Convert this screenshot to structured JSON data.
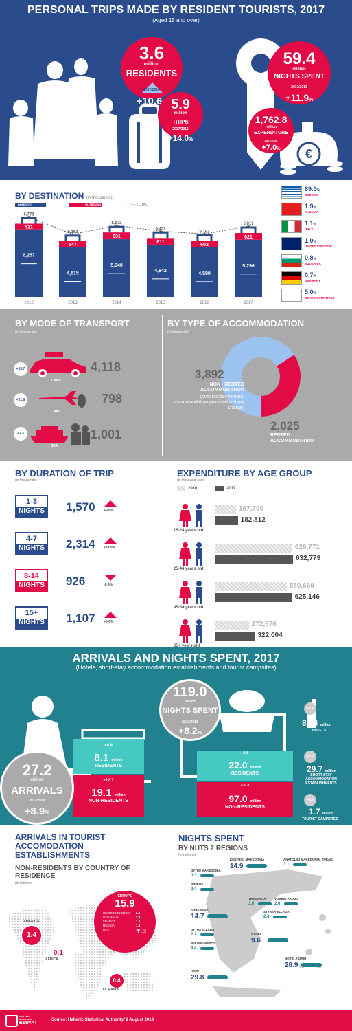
{
  "header": {
    "title": "PERSONAL TRIPS MADE BY RESIDENT TOURISTS, 2017",
    "subtitle": "(Aged 15 and over)"
  },
  "hero": {
    "residents_value": "3.6",
    "residents_unit": "million",
    "residents_label": "RESIDENTS",
    "residents_period": "2017/2016",
    "residents_change": "+10.6",
    "pct": "%",
    "trips_value": "5.9",
    "trips_unit": "million",
    "trips_label": "TRIPS",
    "trips_period": "2017/2016",
    "trips_change": "+14.0",
    "nights_value": "59.4",
    "nights_unit": "million",
    "nights_label": "NIGHTS SPENT",
    "nights_period": "2017/2016",
    "nights_change": "+11.9",
    "exp_value": "1,762.8",
    "exp_unit": "million",
    "exp_label": "EXPENDITURE",
    "exp_period": "2017/2016",
    "exp_change": "+7.0"
  },
  "destination": {
    "title": "BY DESTINATION",
    "unit": "(in thousands)",
    "legend": [
      "DOMESTIC",
      "OUTBOUND",
      "TOTAL"
    ]
  },
  "chart_data": [
    {
      "type": "bar",
      "title": "BY DESTINATION",
      "unit": "(in thousands)",
      "categories": [
        "2012",
        "2013",
        "2014",
        "2015",
        "2016",
        "2017"
      ],
      "series": [
        {
          "name": "DOMESTIC",
          "values": [
            6257,
            4615,
            5340,
            4842,
            4590,
            5296
          ]
        },
        {
          "name": "OUTBOUND",
          "values": [
            521,
            547,
            631,
            611,
            602,
            621
          ]
        },
        {
          "name": "TOTAL",
          "values": [
            6778,
            5163,
            5972,
            5453,
            5192,
            5917
          ]
        }
      ],
      "domestic_labels": [
        "6,257",
        "4,615",
        "5,340",
        "4,842",
        "4,590",
        "5,296"
      ],
      "outbound_labels": [
        "521",
        "547",
        "631",
        "611",
        "602",
        "621"
      ],
      "total_labels": [
        "6,778",
        "5,163",
        "5,972",
        "5,453",
        "5,192",
        "5,917"
      ]
    },
    {
      "type": "bar",
      "title": "BY COUNTRY",
      "categories": [
        "GREECE",
        "ALBANIA",
        "ITALY",
        "UNITED KINGDOM",
        "BULGARIA",
        "GERMANY",
        "OTHER COUNTRIES"
      ],
      "values": [
        89.5,
        1.9,
        1.1,
        1.0,
        0.8,
        0.7,
        5.0
      ]
    },
    {
      "type": "pie",
      "title": "BY TYPE OF ACCOMMODATION",
      "unit": "(in thousands)",
      "categories": [
        "NON - RENTED ACCOMMODATION",
        "RENTED ACCOMMODATION"
      ],
      "values": [
        3892,
        2025
      ]
    },
    {
      "type": "bar",
      "title": "EXPENDITURE BY AGE GROUP",
      "unit": "(in thousand euro)",
      "categories": [
        "15-24 years old",
        "25-44 years old",
        "45-64 years old",
        "65+ years old"
      ],
      "series": [
        {
          "name": "2016",
          "values": [
            167700,
            626771,
            580669,
            272576
          ]
        },
        {
          "name": "2017",
          "values": [
            182812,
            632779,
            625146,
            322004
          ]
        }
      ]
    }
  ],
  "countries": [
    {
      "pct": "89.5",
      "name": "GREECE"
    },
    {
      "pct": "1.9",
      "name": "ALBANIA"
    },
    {
      "pct": "1.1",
      "name": "ITALY"
    },
    {
      "pct": "1.0",
      "name": "UNITED KINGDOM"
    },
    {
      "pct": "0.8",
      "name": "BULGARIA"
    },
    {
      "pct": "0.7",
      "name": "GERMANY"
    },
    {
      "pct": "5.0",
      "name": "OTHER COUNTRIES"
    }
  ],
  "transport": {
    "title": "BY MODE OF TRANSPORT",
    "unit": "(in thousands)",
    "items": [
      {
        "label": "LAND",
        "value": "4,118",
        "change": "+15.7"
      },
      {
        "label": "AIR",
        "value": "798",
        "change": "+21.6"
      },
      {
        "label": "SEA",
        "value": "1,001",
        "change": "+2.3"
      }
    ]
  },
  "accommodation": {
    "title": "BY TYPE OF ACCOMMODATION",
    "unit": "(in thousands)",
    "nonrented_value": "3,892",
    "nonrented_label": "NON - RENTED ACCOMMODATION",
    "nonrented_note": "(own holiday homes, accommodation provided without charge)",
    "rented_value": "2,025",
    "rented_label": "RENTED ACCOMMODATION"
  },
  "duration": {
    "title": "BY DURATION OF TRIP",
    "unit": "(in thousands)",
    "items": [
      {
        "nights": "1-3",
        "label": "NIGHTS",
        "value": "1,570",
        "change": "+9.6",
        "dir": "up"
      },
      {
        "nights": "4-7",
        "label": "NIGHTS",
        "value": "2,314",
        "change": "+33.9",
        "dir": "up"
      },
      {
        "nights": "8-14",
        "label": "NIGHTS",
        "value": "926",
        "change": "-8.4",
        "dir": "down"
      },
      {
        "nights": "15+",
        "label": "NIGHTS",
        "value": "1,107",
        "change": "+8.6",
        "dir": "up"
      }
    ]
  },
  "expenditure": {
    "title": "EXPENDITURE BY AGE GROUP",
    "unit": "(in thousand euro)",
    "legend_2016": "2016",
    "legend_2017": "2017",
    "groups": [
      {
        "label": "15-24 years old",
        "v2016": "167,700",
        "v2017": "182,812"
      },
      {
        "label": "25-44 years old",
        "v2016": "626,771",
        "v2017": "632,779"
      },
      {
        "label": "45-64 years old",
        "v2016": "580,669",
        "v2017": "625,146"
      },
      {
        "label": "65+ years old",
        "v2016": "272,576",
        "v2017": "322,004"
      }
    ]
  },
  "arrivals": {
    "title": "ARRIVALS AND NIGHTS SPENT, 2017",
    "subtitle": "(Hotels, short-stay accommodation establishments and tourist campsites)",
    "arrivals_value": "27.2",
    "arrivals_unit": "million",
    "arrivals_label": "ARRIVALS",
    "arrivals_period": "2017/2016",
    "arrivals_change": "+8.9",
    "res_change": "+4.4",
    "res_value": "8.1",
    "res_unit": "million",
    "res_label": "RESIDENTS",
    "nonres_change": "+12.7",
    "nonres_value": "19.1",
    "nonres_unit": "million",
    "nonres_label": "NON-RESIDENTS",
    "nights_value": "119.0",
    "nights_unit": "million",
    "nights_label": "NIGHTS SPENT",
    "nights_period": "2017/2016",
    "nights_change": "+8.2",
    "nres_change": "-0.4",
    "nres_value": "22.0",
    "nres_unit": "million",
    "nres_label": "RESIDENTS",
    "nnonres_change": "+10.4",
    "nnonres_value": "97.0",
    "nnonres_unit": "million",
    "nnonres_label": "NON-RESIDENTS",
    "hotels_change": "+8.7",
    "hotels_value": "87.6",
    "hotels_unit": "million",
    "hotels_label": "HOTELS",
    "short_change": "+8.2",
    "short_value": "29.7",
    "short_unit": "million",
    "short_label": "SHORT-STAY ACCOMMODATION ESTABLISHMENTS",
    "camp_change": "+3.5",
    "camp_value": "1.7",
    "camp_unit": "million",
    "camp_label": "TOURIST CAMPSITES"
  },
  "world": {
    "title": "ARRIVALS IN TOURIST ACCOMODATION ESTABLISHMENTS",
    "subtitle": "NON-RESIDENTS BY COUNTRY OF RESIDENCE",
    "unit": "(in millions)",
    "europe_label": "EUROPE",
    "europe_value": "15.9",
    "europe_rows": [
      [
        "UNITED KINGDOM",
        "2.6"
      ],
      [
        "GERMANY",
        "2.4"
      ],
      [
        "FRANCE",
        "1.4"
      ],
      [
        "RUSSIA",
        "1.0"
      ],
      [
        "ITALY",
        "1.0"
      ]
    ],
    "america_label": "AMERICA",
    "america_value": "1.4",
    "asia_label": "ASIA",
    "asia_value": "1.3",
    "africa_label": "AFRICA",
    "africa_value": "0.1",
    "oceania_label": "OCEANIA",
    "oceania_value": "0.4"
  },
  "regions": {
    "title": "NIGHTS SPENT",
    "subtitle": "BY NUTS 2 REGIONS",
    "unit": "(in millions)",
    "items": [
      {
        "name": "KENTRIKI MAKEDONIA",
        "value": "14.9"
      },
      {
        "name": "ANATOLIKI MAKEDONIA, THRAKI",
        "value": "3.1"
      },
      {
        "name": "DYTIKI MAKEDONIA",
        "value": "0.3"
      },
      {
        "name": "IPEIROS",
        "value": "2.4"
      },
      {
        "name": "THESSALIA",
        "value": "3.6"
      },
      {
        "name": "VOREIO AIGAIO",
        "value": "2.6"
      },
      {
        "name": "IONIA NISIA",
        "value": "14.7"
      },
      {
        "name": "STEREA ELLADA",
        "value": "2.4"
      },
      {
        "name": "DYTIKI ELLADA",
        "value": "2.2"
      },
      {
        "name": "ATTIKI",
        "value": "9.6"
      },
      {
        "name": "PELOPONNISOS",
        "value": "4.4"
      },
      {
        "name": "NOTIO AIGAIO",
        "value": "28.9"
      },
      {
        "name": "KRITI",
        "value": "29.8"
      }
    ]
  },
  "footer": {
    "logo_top": "HELLENIC STATISTICAL AUTHORITY",
    "logo": "ELSTAT",
    "source": "Source: Hellenic Statistical Authority/ 2 August 2018"
  },
  "colors": {
    "navy": "#2b4c8c",
    "red": "#e30b45",
    "teal": "#22818f",
    "gray": "#aaaaaa",
    "turquoise": "#47c9c3",
    "lightblue": "#9cc2f0"
  }
}
